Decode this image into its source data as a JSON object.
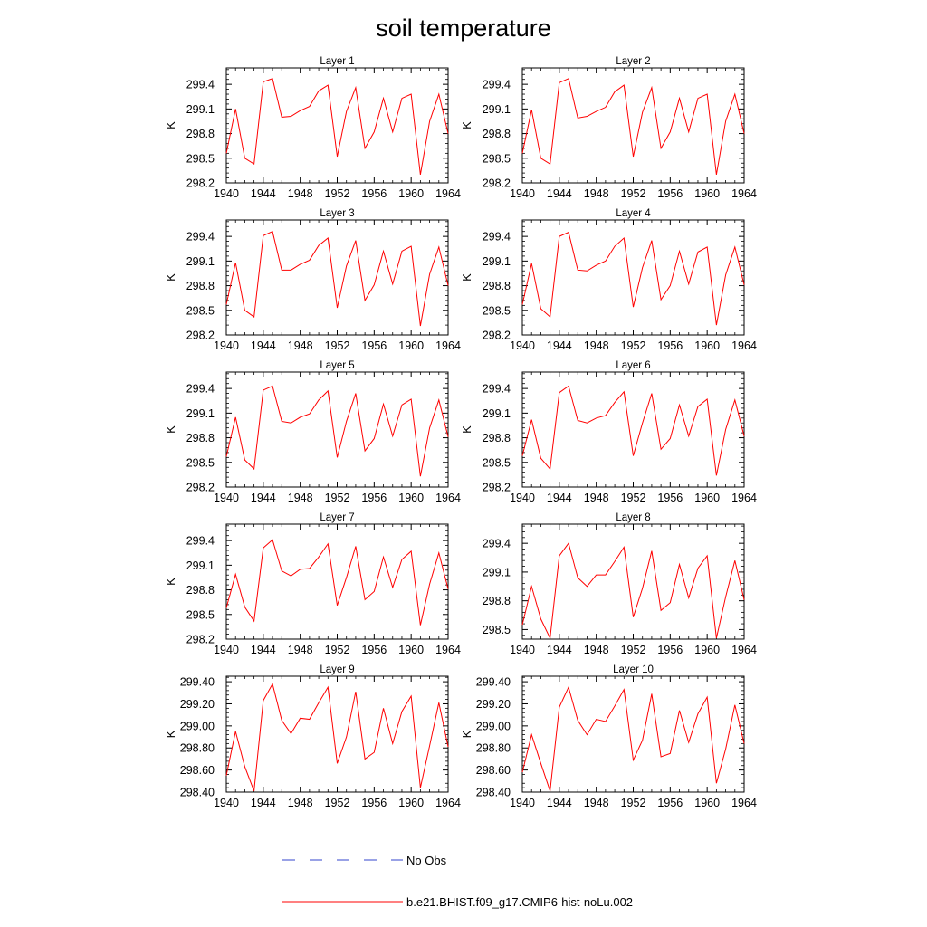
{
  "title": "soil temperature",
  "legend": {
    "obs_label": "No Obs",
    "obs_color": "#3344cc",
    "model_label": "b.e21.BHIST.f09_g17.CMIP6-hist-noLu.002",
    "model_color": "#ff0000"
  },
  "chart_data": [
    {
      "type": "line",
      "title": "Layer 1",
      "ylabel": "K",
      "xlim": [
        1940,
        1964
      ],
      "ylim": [
        298.2,
        299.6
      ],
      "xticks": [
        1940,
        1944,
        1948,
        1952,
        1956,
        1960,
        1964
      ],
      "yticks": [
        "298.2",
        "298.5",
        "298.8",
        "299.1",
        "299.4"
      ],
      "x": [
        1940,
        1941,
        1942,
        1943,
        1944,
        1945,
        1946,
        1947,
        1948,
        1949,
        1950,
        1951,
        1952,
        1953,
        1954,
        1955,
        1956,
        1957,
        1958,
        1959,
        1960,
        1961,
        1962,
        1963,
        1964
      ],
      "series": [
        {
          "name": "b.e21.BHIST.f09_g17.CMIP6-hist-noLu.002",
          "values": [
            298.56,
            299.1,
            298.5,
            298.43,
            299.43,
            299.47,
            299.0,
            299.01,
            299.08,
            299.13,
            299.32,
            299.39,
            298.52,
            299.07,
            299.36,
            298.62,
            298.82,
            299.23,
            298.82,
            299.23,
            299.28,
            298.3,
            298.95,
            299.28,
            298.8
          ]
        }
      ]
    },
    {
      "type": "line",
      "title": "Layer 2",
      "ylabel": "K",
      "xlim": [
        1940,
        1964
      ],
      "ylim": [
        298.2,
        299.6
      ],
      "xticks": [
        1940,
        1944,
        1948,
        1952,
        1956,
        1960,
        1964
      ],
      "yticks": [
        "298.2",
        "298.5",
        "298.8",
        "299.1",
        "299.4"
      ],
      "x": [
        1940,
        1941,
        1942,
        1943,
        1944,
        1945,
        1946,
        1947,
        1948,
        1949,
        1950,
        1951,
        1952,
        1953,
        1954,
        1955,
        1956,
        1957,
        1958,
        1959,
        1960,
        1961,
        1962,
        1963,
        1964
      ],
      "series": [
        {
          "name": "b.e21.BHIST.f09_g17.CMIP6-hist-noLu.002",
          "values": [
            298.56,
            299.09,
            298.5,
            298.43,
            299.42,
            299.47,
            298.99,
            299.01,
            299.07,
            299.12,
            299.31,
            299.39,
            298.52,
            299.06,
            299.36,
            298.62,
            298.82,
            299.23,
            298.82,
            299.23,
            299.28,
            298.3,
            298.95,
            299.28,
            298.8
          ]
        }
      ]
    },
    {
      "type": "line",
      "title": "Layer 3",
      "ylabel": "K",
      "xlim": [
        1940,
        1964
      ],
      "ylim": [
        298.2,
        299.6
      ],
      "xticks": [
        1940,
        1944,
        1948,
        1952,
        1956,
        1960,
        1964
      ],
      "yticks": [
        "298.2",
        "298.5",
        "298.8",
        "299.1",
        "299.4"
      ],
      "x": [
        1940,
        1941,
        1942,
        1943,
        1944,
        1945,
        1946,
        1947,
        1948,
        1949,
        1950,
        1951,
        1952,
        1953,
        1954,
        1955,
        1956,
        1957,
        1958,
        1959,
        1960,
        1961,
        1962,
        1963,
        1964
      ],
      "series": [
        {
          "name": "b.e21.BHIST.f09_g17.CMIP6-hist-noLu.002",
          "values": [
            298.57,
            299.08,
            298.5,
            298.42,
            299.41,
            299.46,
            298.99,
            298.99,
            299.06,
            299.11,
            299.29,
            299.38,
            298.53,
            299.04,
            299.35,
            298.62,
            298.81,
            299.22,
            298.82,
            299.22,
            299.28,
            298.31,
            298.94,
            299.27,
            298.8
          ]
        }
      ]
    },
    {
      "type": "line",
      "title": "Layer 4",
      "ylabel": "K",
      "xlim": [
        1940,
        1964
      ],
      "ylim": [
        298.2,
        299.6
      ],
      "xticks": [
        1940,
        1944,
        1948,
        1952,
        1956,
        1960,
        1964
      ],
      "yticks": [
        "298.2",
        "298.5",
        "298.8",
        "299.1",
        "299.4"
      ],
      "x": [
        1940,
        1941,
        1942,
        1943,
        1944,
        1945,
        1946,
        1947,
        1948,
        1949,
        1950,
        1951,
        1952,
        1953,
        1954,
        1955,
        1956,
        1957,
        1958,
        1959,
        1960,
        1961,
        1962,
        1963,
        1964
      ],
      "series": [
        {
          "name": "b.e21.BHIST.f09_g17.CMIP6-hist-noLu.002",
          "values": [
            298.57,
            299.07,
            298.52,
            298.42,
            299.4,
            299.45,
            298.99,
            298.98,
            299.05,
            299.1,
            299.28,
            299.38,
            298.54,
            299.02,
            299.35,
            298.63,
            298.8,
            299.22,
            298.82,
            299.21,
            299.27,
            298.32,
            298.93,
            299.27,
            298.81
          ]
        }
      ]
    },
    {
      "type": "line",
      "title": "Layer 5",
      "ylabel": "K",
      "xlim": [
        1940,
        1964
      ],
      "ylim": [
        298.2,
        299.6
      ],
      "xticks": [
        1940,
        1944,
        1948,
        1952,
        1956,
        1960,
        1964
      ],
      "yticks": [
        "298.2",
        "298.5",
        "298.8",
        "299.1",
        "299.4"
      ],
      "x": [
        1940,
        1941,
        1942,
        1943,
        1944,
        1945,
        1946,
        1947,
        1948,
        1949,
        1950,
        1951,
        1952,
        1953,
        1954,
        1955,
        1956,
        1957,
        1958,
        1959,
        1960,
        1961,
        1962,
        1963,
        1964
      ],
      "series": [
        {
          "name": "b.e21.BHIST.f09_g17.CMIP6-hist-noLu.002",
          "values": [
            298.57,
            299.05,
            298.53,
            298.42,
            299.38,
            299.43,
            299.0,
            298.98,
            299.05,
            299.09,
            299.26,
            299.37,
            298.56,
            299.0,
            299.34,
            298.64,
            298.79,
            299.21,
            298.82,
            299.2,
            299.27,
            298.33,
            298.92,
            299.26,
            298.81
          ]
        }
      ]
    },
    {
      "type": "line",
      "title": "Layer 6",
      "ylabel": "K",
      "xlim": [
        1940,
        1964
      ],
      "ylim": [
        298.2,
        299.6
      ],
      "xticks": [
        1940,
        1944,
        1948,
        1952,
        1956,
        1960,
        1964
      ],
      "yticks": [
        "298.2",
        "298.5",
        "298.8",
        "299.1",
        "299.4"
      ],
      "x": [
        1940,
        1941,
        1942,
        1943,
        1944,
        1945,
        1946,
        1947,
        1948,
        1949,
        1950,
        1951,
        1952,
        1953,
        1954,
        1955,
        1956,
        1957,
        1958,
        1959,
        1960,
        1961,
        1962,
        1963,
        1964
      ],
      "series": [
        {
          "name": "b.e21.BHIST.f09_g17.CMIP6-hist-noLu.002",
          "values": [
            298.58,
            299.02,
            298.55,
            298.42,
            299.35,
            299.43,
            299.01,
            298.98,
            299.04,
            299.07,
            299.23,
            299.36,
            298.58,
            298.98,
            299.34,
            298.66,
            298.79,
            299.2,
            298.82,
            299.18,
            299.27,
            298.34,
            298.9,
            299.26,
            298.82
          ]
        }
      ]
    },
    {
      "type": "line",
      "title": "Layer 7",
      "ylabel": "K",
      "xlim": [
        1940,
        1964
      ],
      "ylim": [
        298.2,
        299.6
      ],
      "xticks": [
        1940,
        1944,
        1948,
        1952,
        1956,
        1960,
        1964
      ],
      "yticks": [
        "298.2",
        "298.5",
        "298.8",
        "299.1",
        "299.4"
      ],
      "x": [
        1940,
        1941,
        1942,
        1943,
        1944,
        1945,
        1946,
        1947,
        1948,
        1949,
        1950,
        1951,
        1952,
        1953,
        1954,
        1955,
        1956,
        1957,
        1958,
        1959,
        1960,
        1961,
        1962,
        1963,
        1964
      ],
      "series": [
        {
          "name": "b.e21.BHIST.f09_g17.CMIP6-hist-noLu.002",
          "values": [
            298.58,
            298.99,
            298.59,
            298.42,
            299.31,
            299.41,
            299.03,
            298.97,
            299.05,
            299.06,
            299.2,
            299.36,
            298.61,
            298.95,
            299.33,
            298.68,
            298.78,
            299.2,
            298.83,
            299.17,
            299.27,
            298.37,
            298.87,
            299.25,
            298.81
          ]
        }
      ]
    },
    {
      "type": "line",
      "title": "Layer 8",
      "ylabel": "",
      "xlim": [
        1940,
        1964
      ],
      "ylim": [
        298.4,
        299.6
      ],
      "xticks": [
        1940,
        1944,
        1948,
        1952,
        1956,
        1960,
        1964
      ],
      "yticks": [
        "298.5",
        "298.8",
        "299.1",
        "299.4"
      ],
      "x": [
        1940,
        1941,
        1942,
        1943,
        1944,
        1945,
        1946,
        1947,
        1948,
        1949,
        1950,
        1951,
        1952,
        1953,
        1954,
        1955,
        1956,
        1957,
        1958,
        1959,
        1960,
        1961,
        1962,
        1963,
        1964
      ],
      "series": [
        {
          "name": "b.e21.BHIST.f09_g17.CMIP6-hist-noLu.002",
          "values": [
            298.55,
            298.95,
            298.61,
            298.41,
            299.27,
            299.4,
            299.04,
            298.95,
            299.07,
            299.07,
            299.21,
            299.36,
            298.63,
            298.93,
            299.32,
            298.7,
            298.78,
            299.18,
            298.83,
            299.14,
            299.27,
            298.41,
            298.84,
            299.22,
            298.81
          ]
        }
      ]
    },
    {
      "type": "line",
      "title": "Layer 9",
      "ylabel": "K",
      "xlim": [
        1940,
        1964
      ],
      "ylim": [
        298.4,
        299.45
      ],
      "xticks": [
        1940,
        1944,
        1948,
        1952,
        1956,
        1960,
        1964
      ],
      "yticks": [
        "298.40",
        "298.60",
        "298.80",
        "299.00",
        "299.20",
        "299.40"
      ],
      "x": [
        1940,
        1941,
        1942,
        1943,
        1944,
        1945,
        1946,
        1947,
        1948,
        1949,
        1950,
        1951,
        1952,
        1953,
        1954,
        1955,
        1956,
        1957,
        1958,
        1959,
        1960,
        1961,
        1962,
        1963,
        1964
      ],
      "series": [
        {
          "name": "b.e21.BHIST.f09_g17.CMIP6-hist-noLu.002",
          "values": [
            298.55,
            298.95,
            298.63,
            298.41,
            299.23,
            299.38,
            299.05,
            298.93,
            299.07,
            299.06,
            299.21,
            299.35,
            298.66,
            298.9,
            299.31,
            298.7,
            298.76,
            299.16,
            298.84,
            299.13,
            299.27,
            298.44,
            298.82,
            299.21,
            298.81
          ]
        }
      ]
    },
    {
      "type": "line",
      "title": "Layer 10",
      "ylabel": "K",
      "xlim": [
        1940,
        1964
      ],
      "ylim": [
        298.4,
        299.45
      ],
      "xticks": [
        1940,
        1944,
        1948,
        1952,
        1956,
        1960,
        1964
      ],
      "yticks": [
        "298.40",
        "298.60",
        "298.80",
        "299.00",
        "299.20",
        "299.40"
      ],
      "x": [
        1940,
        1941,
        1942,
        1943,
        1944,
        1945,
        1946,
        1947,
        1948,
        1949,
        1950,
        1951,
        1952,
        1953,
        1954,
        1955,
        1956,
        1957,
        1958,
        1959,
        1960,
        1961,
        1962,
        1963,
        1964
      ],
      "series": [
        {
          "name": "b.e21.BHIST.f09_g17.CMIP6-hist-noLu.002",
          "values": [
            298.58,
            298.92,
            298.66,
            298.41,
            299.17,
            299.35,
            299.05,
            298.92,
            299.06,
            299.04,
            299.18,
            299.33,
            298.69,
            298.87,
            299.29,
            298.72,
            298.75,
            299.14,
            298.85,
            299.11,
            299.26,
            298.48,
            298.79,
            299.19,
            298.84
          ]
        }
      ]
    }
  ]
}
